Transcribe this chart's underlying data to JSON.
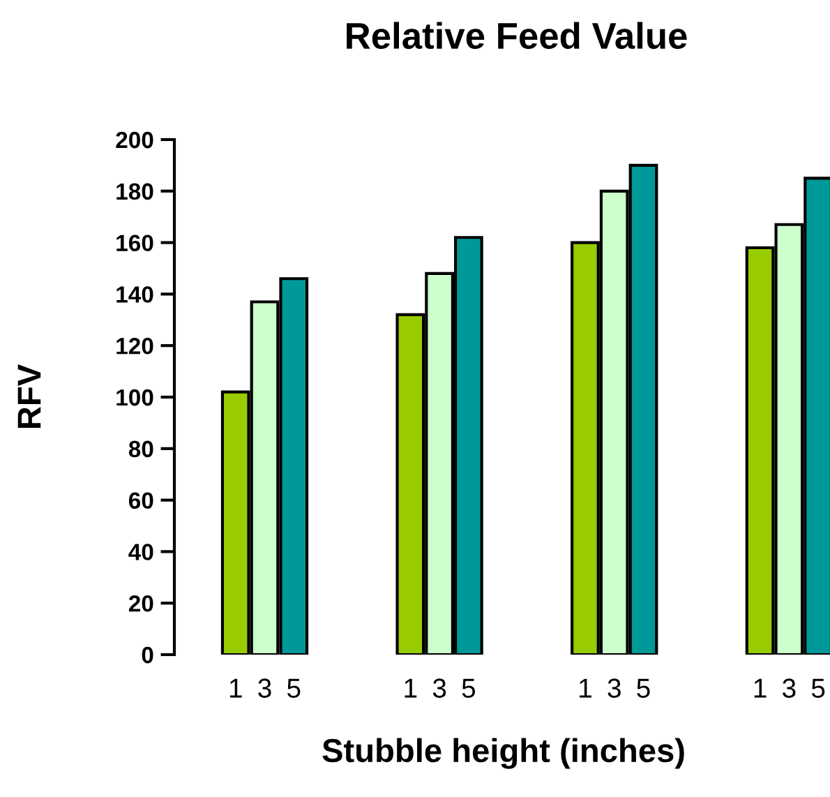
{
  "chart_data": {
    "type": "bar",
    "title": "Relative Feed Value",
    "xlabel": "Stubble height (inches)",
    "ylabel": "RFV",
    "categories": [
      "1",
      "3",
      "5",
      null,
      null,
      null,
      "1",
      "3",
      "5",
      null,
      null,
      null,
      "1",
      "3",
      "5",
      null,
      null,
      null,
      "1",
      "3",
      "5"
    ],
    "values": [
      102,
      137,
      146,
      null,
      null,
      null,
      132,
      148,
      162,
      null,
      null,
      null,
      160,
      180,
      190,
      null,
      null,
      null,
      158,
      167,
      185
    ],
    "colors": [
      "#99cc00",
      "#ccffcc",
      "#009999",
      null,
      null,
      null,
      "#99cc00",
      "#ccffcc",
      "#009999",
      null,
      null,
      null,
      "#99cc00",
      "#ccffcc",
      "#009999",
      null,
      null,
      null,
      "#99cc00",
      "#ccffcc",
      "#009999"
    ],
    "ylim": [
      0,
      200
    ],
    "yticks": [
      0,
      20,
      40,
      60,
      80,
      100,
      120,
      140,
      160,
      180,
      200
    ],
    "grid": false,
    "legend": false
  }
}
